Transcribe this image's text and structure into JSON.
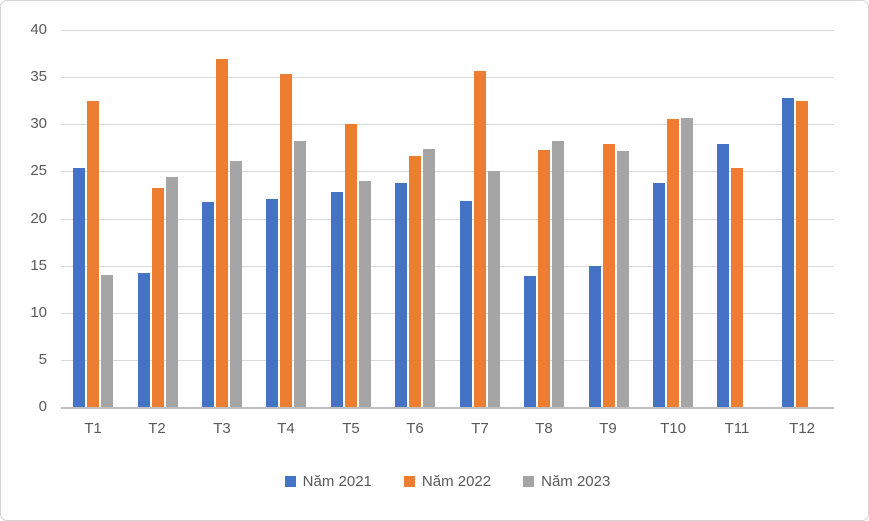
{
  "chart_data": {
    "type": "bar",
    "title": "",
    "xlabel": "",
    "ylabel": "",
    "categories": [
      "T1",
      "T2",
      "T3",
      "T4",
      "T5",
      "T6",
      "T7",
      "T8",
      "T9",
      "T10",
      "T11",
      "T12"
    ],
    "series": [
      {
        "name": "Năm 2021",
        "color": "#4472C4",
        "values": [
          25.4,
          14.2,
          21.8,
          22.1,
          22.8,
          23.8,
          21.9,
          13.9,
          15.0,
          23.8,
          27.9,
          32.8
        ]
      },
      {
        "name": "Năm 2022",
        "color": "#ED7D31",
        "values": [
          32.5,
          23.2,
          36.9,
          35.3,
          30.0,
          26.6,
          35.7,
          27.3,
          27.9,
          30.6,
          25.4,
          32.5
        ]
      },
      {
        "name": "Năm 2023",
        "color": "#A5A5A5",
        "values": [
          14.0,
          24.4,
          26.1,
          28.2,
          24.0,
          27.4,
          25.0,
          28.2,
          27.2,
          30.7,
          null,
          null
        ]
      }
    ],
    "ylim": [
      0,
      40
    ],
    "ytick_step": 5,
    "ytick_labels": [
      "0",
      "5",
      "10",
      "15",
      "20",
      "25",
      "30",
      "35",
      "40"
    ],
    "grid": true,
    "legend_position": "bottom",
    "style": {
      "axis_text_color": "#595959",
      "gridline_color": "#D9D9D9",
      "axis_line_color": "#BFBFBF",
      "chart_border_color": "#D5D5D5",
      "background_color": "#FFFFFF"
    }
  }
}
